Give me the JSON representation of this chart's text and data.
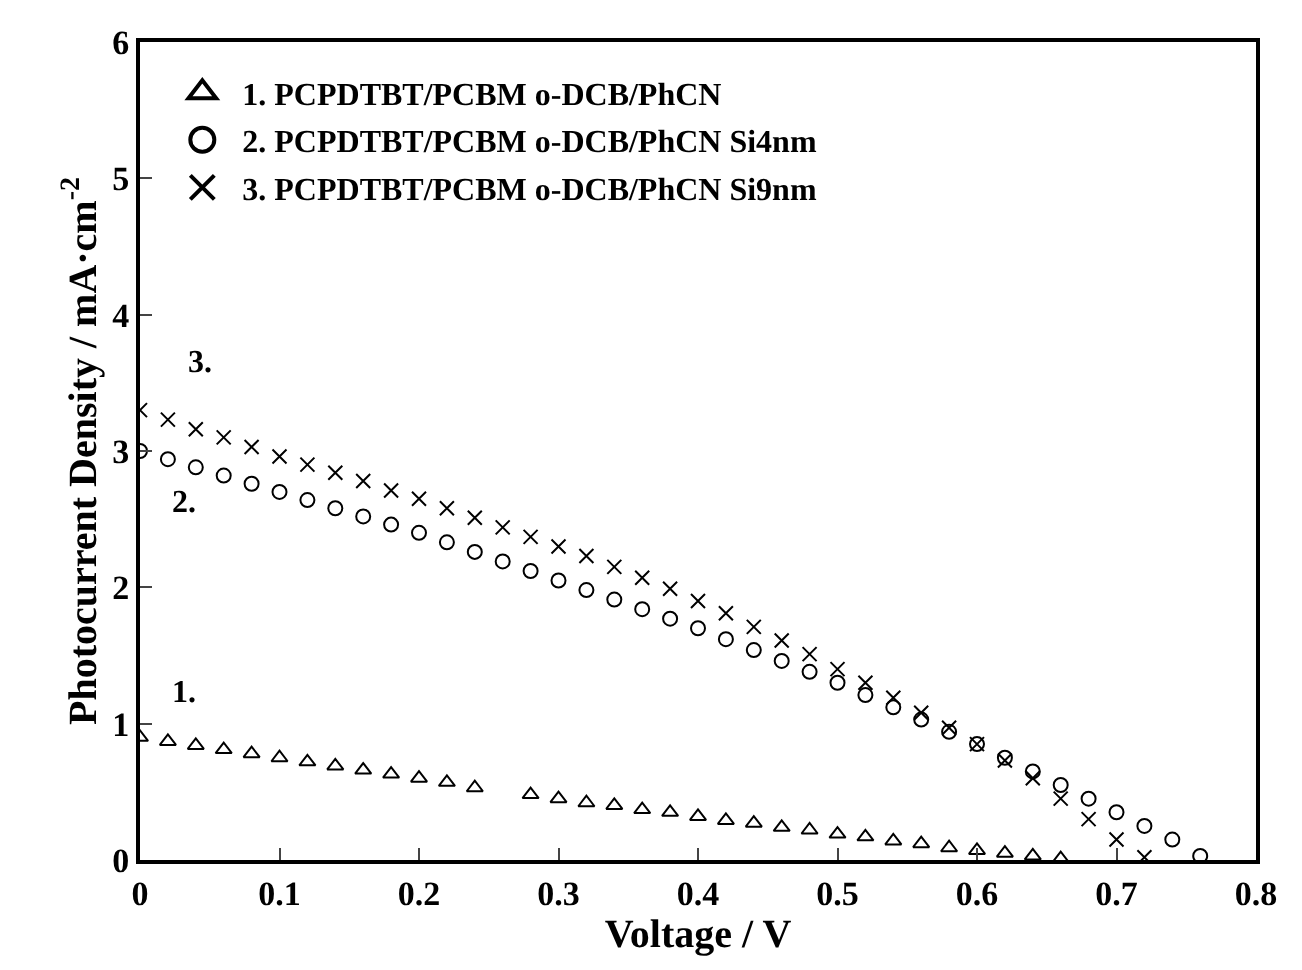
{
  "chart_data": {
    "type": "scatter",
    "xlabel": "Voltage / V",
    "ylabel": "Photocurrent Density / mA·cm$^{-2}$",
    "xlim": [
      0,
      0.8
    ],
    "xticks": [
      0,
      0.1,
      0.2,
      0.3,
      0.4,
      0.5,
      0.6,
      0.7,
      0.8
    ],
    "ylim": [
      0,
      6
    ],
    "yticks": [
      0,
      1,
      2,
      3,
      4,
      5,
      6
    ],
    "legend": "top left",
    "series": [
      {
        "name": "1. PCPDTBT/PCBM o-DCB/PhCN",
        "color": "#000000",
        "marker": "triangle",
        "x": [
          0,
          0.02,
          0.04,
          0.06,
          0.08,
          0.1,
          0.12,
          0.14,
          0.16,
          0.18,
          0.2,
          0.22,
          0.24,
          0.28,
          0.3,
          0.32,
          0.34,
          0.36,
          0.38,
          0.4,
          0.42,
          0.44,
          0.46,
          0.48,
          0.5,
          0.52,
          0.54,
          0.56,
          0.58,
          0.6,
          0.62,
          0.64,
          0.66
        ],
        "values": [
          0.9,
          0.87,
          0.84,
          0.81,
          0.78,
          0.75,
          0.72,
          0.69,
          0.66,
          0.63,
          0.6,
          0.57,
          0.53,
          0.48,
          0.45,
          0.42,
          0.4,
          0.37,
          0.35,
          0.32,
          0.29,
          0.27,
          0.24,
          0.22,
          0.19,
          0.17,
          0.14,
          0.12,
          0.09,
          0.07,
          0.05,
          0.03,
          0.01
        ]
      },
      {
        "name": "2. PCPDTBT/PCBM o-DCB/PhCN Si4nm",
        "color": "#000000",
        "marker": "circle",
        "x": [
          0,
          0.02,
          0.04,
          0.06,
          0.08,
          0.1,
          0.12,
          0.14,
          0.16,
          0.18,
          0.2,
          0.22,
          0.24,
          0.26,
          0.28,
          0.3,
          0.32,
          0.34,
          0.36,
          0.38,
          0.4,
          0.42,
          0.44,
          0.46,
          0.48,
          0.5,
          0.52,
          0.54,
          0.56,
          0.58,
          0.6,
          0.62,
          0.64,
          0.66,
          0.68,
          0.7,
          0.72,
          0.74,
          0.76
        ],
        "values": [
          3.0,
          2.94,
          2.88,
          2.82,
          2.76,
          2.7,
          2.64,
          2.58,
          2.52,
          2.46,
          2.4,
          2.33,
          2.26,
          2.19,
          2.12,
          2.05,
          1.98,
          1.91,
          1.84,
          1.77,
          1.7,
          1.62,
          1.54,
          1.46,
          1.38,
          1.3,
          1.21,
          1.12,
          1.03,
          0.94,
          0.85,
          0.75,
          0.65,
          0.55,
          0.45,
          0.35,
          0.25,
          0.15,
          0.03
        ]
      },
      {
        "name": "3. PCPDTBT/PCBM o-DCB/PhCN Si9nm",
        "color": "#000000",
        "marker": "cross",
        "x": [
          0,
          0.02,
          0.04,
          0.06,
          0.08,
          0.1,
          0.12,
          0.14,
          0.16,
          0.18,
          0.2,
          0.22,
          0.24,
          0.26,
          0.28,
          0.3,
          0.32,
          0.34,
          0.36,
          0.38,
          0.4,
          0.42,
          0.44,
          0.46,
          0.48,
          0.5,
          0.52,
          0.54,
          0.56,
          0.58,
          0.6,
          0.62,
          0.64,
          0.66,
          0.68,
          0.7,
          0.72
        ],
        "values": [
          3.3,
          3.23,
          3.16,
          3.1,
          3.03,
          2.96,
          2.9,
          2.84,
          2.78,
          2.71,
          2.65,
          2.58,
          2.51,
          2.44,
          2.37,
          2.3,
          2.23,
          2.15,
          2.07,
          1.99,
          1.9,
          1.81,
          1.71,
          1.61,
          1.51,
          1.4,
          1.3,
          1.19,
          1.08,
          0.97,
          0.85,
          0.73,
          0.6,
          0.45,
          0.3,
          0.15,
          0.02
        ]
      }
    ],
    "annotations": [
      "1.",
      "2.",
      "3."
    ]
  }
}
